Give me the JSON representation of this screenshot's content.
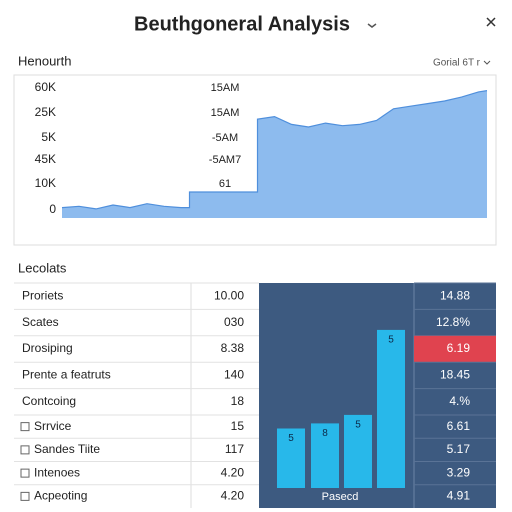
{
  "header": {
    "title": "Beuthgoneral Analysis"
  },
  "panel": {
    "title": "Henourth",
    "dropdown": "Gorial 6T r"
  },
  "chart_data": [
    {
      "type": "area",
      "axis_labels": [
        "60K",
        "25K",
        "5K",
        "45K",
        "10K",
        "0"
      ],
      "annotations": [
        "15AM",
        "15AM",
        "-5AM",
        "-5AM7",
        "61"
      ],
      "x": [
        0,
        4,
        8,
        12,
        16,
        20,
        24,
        28,
        30,
        30,
        46,
        46,
        50,
        54,
        58,
        62,
        66,
        70,
        74,
        78,
        82,
        86,
        90,
        94,
        98,
        100
      ],
      "values": [
        8,
        9,
        7,
        10,
        8,
        11,
        9,
        8,
        8,
        20,
        20,
        76,
        78,
        72,
        70,
        73,
        71,
        72,
        75,
        84,
        86,
        88,
        90,
        93,
        97,
        98
      ],
      "xlim": [
        0,
        100
      ],
      "ylim": [
        0,
        100
      ],
      "color": "#8dbbee",
      "line_color": "#4f8fdc"
    },
    {
      "type": "bar",
      "values": [
        35,
        38,
        43,
        93
      ],
      "annotations": [
        "5",
        "8",
        "5",
        "5"
      ],
      "x_label": "Pasecd",
      "ylim": [
        0,
        100
      ],
      "color": "#28b8ea"
    }
  ],
  "table": {
    "title": "Lecolats",
    "rows": [
      {
        "label": "Proriets",
        "value": "10.00",
        "side": "14.88",
        "checkbox": false,
        "highlight": false
      },
      {
        "label": "Scates",
        "value": "030",
        "side": "12.8%",
        "checkbox": false,
        "highlight": false
      },
      {
        "label": "Drosiping",
        "value": "8.38",
        "side": "6.19",
        "checkbox": false,
        "highlight": true
      },
      {
        "label": "Prente a featruts",
        "value": "140",
        "side": "18.45",
        "checkbox": false,
        "highlight": false
      },
      {
        "label": "Contcoing",
        "value": "18",
        "side": "4.%",
        "checkbox": false,
        "highlight": false
      },
      {
        "label": "Srrvice",
        "value": "15",
        "side": "6.61",
        "checkbox": true,
        "highlight": false
      },
      {
        "label": "Sandes Tiite",
        "value": "117",
        "side": "5.17",
        "checkbox": true,
        "highlight": false
      },
      {
        "label": "Intenoes",
        "value": "4.20",
        "side": "3.29",
        "checkbox": true,
        "highlight": false
      },
      {
        "label": "Acpeoting",
        "value": "4.20",
        "side": "4.91",
        "checkbox": true,
        "highlight": false
      }
    ]
  }
}
